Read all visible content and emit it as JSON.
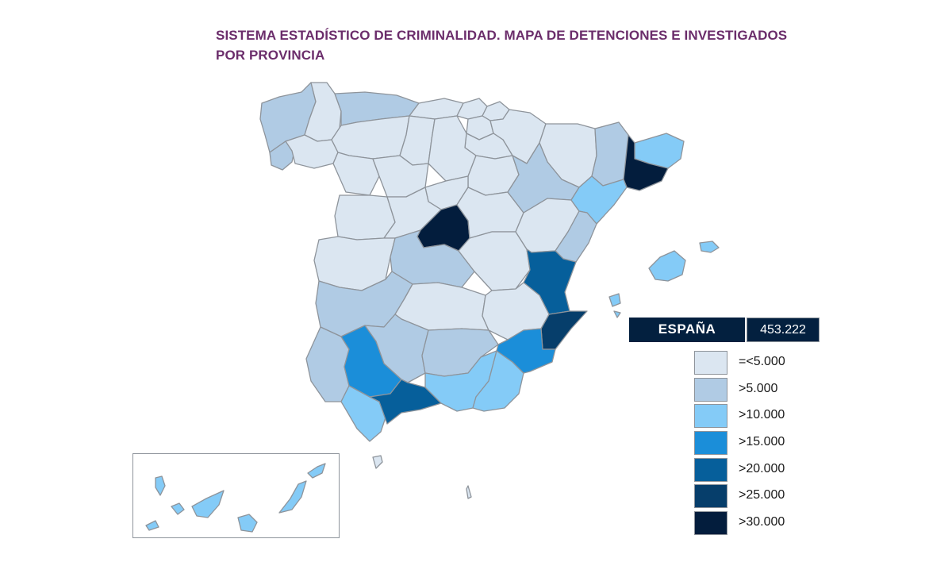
{
  "title": {
    "line1": "SISTEMA ESTADÍSTICO DE CRIMINALIDAD. MAPA DE DETENCIONES E INVESTIGADOS",
    "line2": "POR PROVINCIA"
  },
  "total": {
    "label": "ESPAÑA",
    "value": "453.222"
  },
  "legend": [
    {
      "label": "=<5.000",
      "color": "#dbe6f1"
    },
    {
      "label": ">5.000",
      "color": "#b0cbe4"
    },
    {
      "label": ">10.000",
      "color": "#84cbf7"
    },
    {
      "label": ">15.000",
      "color": "#1b8ed9"
    },
    {
      "label": ">20.000",
      "color": "#065f9b"
    },
    {
      "label": ">25.000",
      "color": "#063e6b"
    },
    {
      "label": ">30.000",
      "color": "#031d3d"
    }
  ]
}
